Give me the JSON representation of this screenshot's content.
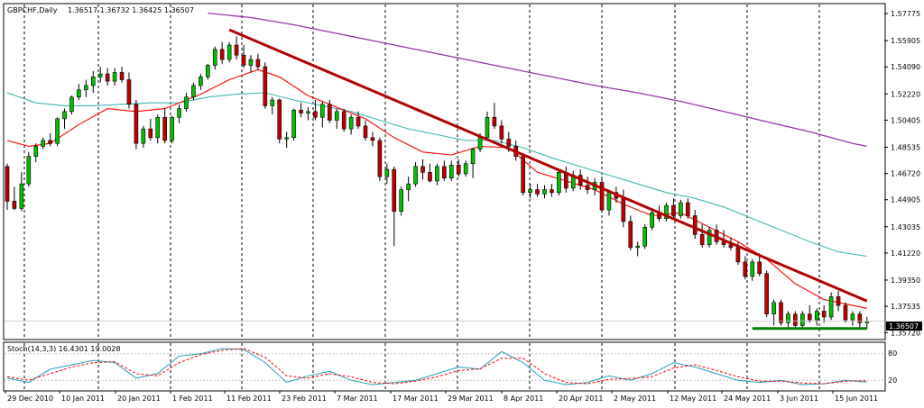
{
  "header": {
    "symbol": "GBPCHF,Daily",
    "ohlc": "1.36517 1.36732 1.36425 1.36507"
  },
  "stoch": {
    "label": "Stoch(14,3,3) 16.4301 19.0028",
    "levels": [
      "80",
      "20"
    ]
  },
  "colors": {
    "bull": "#00c000",
    "bear": "#c00000",
    "ema_fast": "#ff0000",
    "ema_slow": "#3cb8b0",
    "ma_long": "#9933aa",
    "trend": "#b00000",
    "support": "#008000",
    "grid": "#000000",
    "stoch_main": "#20a0c0",
    "stoch_signal": "#ff0000"
  },
  "chart_data": {
    "type": "candlestick",
    "symbol": "GBPCHF",
    "timeframe": "Daily",
    "y_ticks": [
      "1.57775",
      "1.55905",
      "1.54090",
      "1.52220",
      "1.50405",
      "1.48535",
      "1.46720",
      "1.44905",
      "1.43035",
      "1.41220",
      "1.39350",
      "1.37535",
      "1.35720"
    ],
    "y_range": [
      1.3572,
      1.57775
    ],
    "current_price": "1.36507",
    "x_ticks": [
      "29 Dec 2010",
      "10 Jan 2011",
      "20 Jan 2011",
      "1 Feb 2011",
      "11 Feb 2011",
      "23 Feb 2011",
      "7 Mar 2011",
      "17 Mar 2011",
      "29 Mar 2011",
      "8 Apr 2011",
      "20 Apr 2011",
      "2 May 2011",
      "12 May 2011",
      "24 May 2011",
      "3 Jun 2011",
      "15 Jun 2011"
    ],
    "candles": [
      [
        1.472,
        1.474,
        1.442,
        1.448
      ],
      [
        1.448,
        1.458,
        1.442,
        1.443
      ],
      [
        1.443,
        1.468,
        1.441,
        1.46
      ],
      [
        1.46,
        1.482,
        1.458,
        1.479
      ],
      [
        1.479,
        1.488,
        1.475,
        1.486
      ],
      [
        1.486,
        1.492,
        1.484,
        1.49
      ],
      [
        1.49,
        1.495,
        1.486,
        1.488
      ],
      [
        1.488,
        1.506,
        1.486,
        1.505
      ],
      [
        1.505,
        1.512,
        1.498,
        1.51
      ],
      [
        1.51,
        1.521,
        1.508,
        1.52
      ],
      [
        1.52,
        1.529,
        1.518,
        1.525
      ],
      [
        1.525,
        1.532,
        1.52,
        1.528
      ],
      [
        1.528,
        1.538,
        1.523,
        1.534
      ],
      [
        1.534,
        1.541,
        1.53,
        1.536
      ],
      [
        1.536,
        1.54,
        1.528,
        1.531
      ],
      [
        1.531,
        1.54,
        1.528,
        1.537
      ],
      [
        1.537,
        1.541,
        1.53,
        1.532
      ],
      [
        1.532,
        1.537,
        1.512,
        1.515
      ],
      [
        1.515,
        1.518,
        1.484,
        1.488
      ],
      [
        1.488,
        1.5,
        1.485,
        1.498
      ],
      [
        1.498,
        1.505,
        1.49,
        1.492
      ],
      [
        1.492,
        1.508,
        1.488,
        1.506
      ],
      [
        1.506,
        1.512,
        1.488,
        1.49
      ],
      [
        1.49,
        1.507,
        1.488,
        1.506
      ],
      [
        1.506,
        1.515,
        1.502,
        1.512
      ],
      [
        1.512,
        1.523,
        1.51,
        1.52
      ],
      [
        1.52,
        1.53,
        1.518,
        1.528
      ],
      [
        1.528,
        1.536,
        1.525,
        1.534
      ],
      [
        1.534,
        1.543,
        1.532,
        1.542
      ],
      [
        1.542,
        1.555,
        1.539,
        1.553
      ],
      [
        1.553,
        1.558,
        1.543,
        1.546
      ],
      [
        1.546,
        1.558,
        1.544,
        1.556
      ],
      [
        1.556,
        1.562,
        1.546,
        1.549
      ],
      [
        1.549,
        1.556,
        1.54,
        1.542
      ],
      [
        1.542,
        1.549,
        1.537,
        1.546
      ],
      [
        1.546,
        1.55,
        1.539,
        1.541
      ],
      [
        1.541,
        1.544,
        1.512,
        1.514
      ],
      [
        1.514,
        1.52,
        1.508,
        1.518
      ],
      [
        1.518,
        1.519,
        1.488,
        1.491
      ],
      [
        1.491,
        1.496,
        1.485,
        1.492
      ],
      [
        1.492,
        1.512,
        1.49,
        1.511
      ],
      [
        1.511,
        1.516,
        1.506,
        1.509
      ],
      [
        1.509,
        1.513,
        1.504,
        1.51
      ],
      [
        1.51,
        1.518,
        1.504,
        1.506
      ],
      [
        1.506,
        1.517,
        1.499,
        1.515
      ],
      [
        1.515,
        1.518,
        1.502,
        1.504
      ],
      [
        1.504,
        1.512,
        1.498,
        1.51
      ],
      [
        1.51,
        1.512,
        1.496,
        1.498
      ],
      [
        1.498,
        1.508,
        1.494,
        1.506
      ],
      [
        1.506,
        1.51,
        1.498,
        1.5
      ],
      [
        1.5,
        1.504,
        1.49,
        1.492
      ],
      [
        1.492,
        1.496,
        1.486,
        1.49
      ],
      [
        1.49,
        1.492,
        1.462,
        1.465
      ],
      [
        1.465,
        1.474,
        1.46,
        1.47
      ],
      [
        1.47,
        1.472,
        1.417,
        1.441
      ],
      [
        1.441,
        1.458,
        1.438,
        1.456
      ],
      [
        1.456,
        1.465,
        1.448,
        1.46
      ],
      [
        1.46,
        1.475,
        1.458,
        1.472
      ],
      [
        1.472,
        1.477,
        1.463,
        1.468
      ],
      [
        1.468,
        1.474,
        1.461,
        1.462
      ],
      [
        1.462,
        1.474,
        1.459,
        1.472
      ],
      [
        1.472,
        1.476,
        1.462,
        1.464
      ],
      [
        1.464,
        1.476,
        1.462,
        1.473
      ],
      [
        1.473,
        1.477,
        1.465,
        1.467
      ],
      [
        1.467,
        1.476,
        1.465,
        1.474
      ],
      [
        1.474,
        1.485,
        1.464,
        1.484
      ],
      [
        1.484,
        1.495,
        1.482,
        1.492
      ],
      [
        1.492,
        1.51,
        1.49,
        1.506
      ],
      [
        1.506,
        1.516,
        1.498,
        1.5
      ],
      [
        1.5,
        1.504,
        1.488,
        1.491
      ],
      [
        1.491,
        1.496,
        1.482,
        1.486
      ],
      [
        1.486,
        1.49,
        1.476,
        1.479
      ],
      [
        1.479,
        1.48,
        1.452,
        1.454
      ],
      [
        1.454,
        1.46,
        1.45,
        1.456
      ],
      [
        1.456,
        1.46,
        1.451,
        1.453
      ],
      [
        1.453,
        1.459,
        1.45,
        1.456
      ],
      [
        1.456,
        1.46,
        1.451,
        1.454
      ],
      [
        1.454,
        1.47,
        1.452,
        1.468
      ],
      [
        1.468,
        1.472,
        1.454,
        1.457
      ],
      [
        1.457,
        1.469,
        1.455,
        1.466
      ],
      [
        1.466,
        1.47,
        1.456,
        1.459
      ],
      [
        1.459,
        1.465,
        1.453,
        1.456
      ],
      [
        1.456,
        1.464,
        1.452,
        1.461
      ],
      [
        1.461,
        1.465,
        1.44,
        1.442
      ],
      [
        1.442,
        1.456,
        1.438,
        1.454
      ],
      [
        1.454,
        1.458,
        1.447,
        1.45
      ],
      [
        1.45,
        1.456,
        1.43,
        1.434
      ],
      [
        1.434,
        1.438,
        1.414,
        1.416
      ],
      [
        1.416,
        1.42,
        1.41,
        1.417
      ],
      [
        1.417,
        1.432,
        1.415,
        1.43
      ],
      [
        1.43,
        1.442,
        1.428,
        1.44
      ],
      [
        1.44,
        1.445,
        1.434,
        1.436
      ],
      [
        1.436,
        1.447,
        1.434,
        1.445
      ],
      [
        1.445,
        1.45,
        1.436,
        1.438
      ],
      [
        1.438,
        1.449,
        1.436,
        1.447
      ],
      [
        1.447,
        1.45,
        1.436,
        1.438
      ],
      [
        1.438,
        1.442,
        1.422,
        1.425
      ],
      [
        1.425,
        1.432,
        1.416,
        1.418
      ],
      [
        1.418,
        1.43,
        1.416,
        1.428
      ],
      [
        1.428,
        1.432,
        1.418,
        1.42
      ],
      [
        1.42,
        1.428,
        1.416,
        1.418
      ],
      [
        1.418,
        1.423,
        1.414,
        1.416
      ],
      [
        1.416,
        1.42,
        1.404,
        1.406
      ],
      [
        1.406,
        1.41,
        1.394,
        1.396
      ],
      [
        1.396,
        1.408,
        1.393,
        1.406
      ],
      [
        1.406,
        1.412,
        1.396,
        1.398
      ],
      [
        1.398,
        1.4,
        1.368,
        1.37
      ],
      [
        1.37,
        1.38,
        1.362,
        1.378
      ],
      [
        1.378,
        1.38,
        1.362,
        1.364
      ],
      [
        1.364,
        1.372,
        1.36,
        1.37
      ],
      [
        1.37,
        1.372,
        1.36,
        1.362
      ],
      [
        1.362,
        1.372,
        1.36,
        1.37
      ],
      [
        1.37,
        1.376,
        1.364,
        1.366
      ],
      [
        1.366,
        1.374,
        1.362,
        1.372
      ],
      [
        1.372,
        1.376,
        1.364,
        1.368
      ],
      [
        1.368,
        1.385,
        1.366,
        1.382
      ],
      [
        1.382,
        1.386,
        1.372,
        1.376
      ],
      [
        1.376,
        1.378,
        1.364,
        1.366
      ],
      [
        1.366,
        1.372,
        1.362,
        1.37
      ],
      [
        1.37,
        1.372,
        1.36,
        1.364
      ],
      [
        1.364,
        1.368,
        1.36,
        1.365
      ]
    ],
    "trend_line": {
      "start": [
        31,
        1.5665
      ],
      "end": [
        120,
        1.379
      ]
    },
    "support_line": {
      "start": [
        104,
        1.36
      ],
      "end": [
        120,
        1.36
      ]
    },
    "ema_fast": [
      [
        0,
        1.49
      ],
      [
        3,
        1.486
      ],
      [
        6,
        1.488
      ],
      [
        10,
        1.501
      ],
      [
        14,
        1.512
      ],
      [
        18,
        1.51
      ],
      [
        22,
        1.512
      ],
      [
        27,
        1.522
      ],
      [
        31,
        1.532
      ],
      [
        35,
        1.539
      ],
      [
        38,
        1.534
      ],
      [
        42,
        1.521
      ],
      [
        46,
        1.513
      ],
      [
        50,
        1.505
      ],
      [
        54,
        1.492
      ],
      [
        58,
        1.482
      ],
      [
        62,
        1.48
      ],
      [
        66,
        1.486
      ],
      [
        70,
        1.485
      ],
      [
        74,
        1.468
      ],
      [
        78,
        1.462
      ],
      [
        82,
        1.456
      ],
      [
        86,
        1.446
      ],
      [
        90,
        1.438
      ],
      [
        94,
        1.44
      ],
      [
        98,
        1.43
      ],
      [
        102,
        1.42
      ],
      [
        106,
        1.408
      ],
      [
        110,
        1.391
      ],
      [
        114,
        1.38
      ],
      [
        120,
        1.374
      ]
    ],
    "ema_slow": [
      [
        0,
        1.523
      ],
      [
        4,
        1.516
      ],
      [
        8,
        1.514
      ],
      [
        12,
        1.514
      ],
      [
        16,
        1.515
      ],
      [
        20,
        1.516
      ],
      [
        24,
        1.516
      ],
      [
        28,
        1.52
      ],
      [
        32,
        1.522
      ],
      [
        36,
        1.523
      ],
      [
        40,
        1.518
      ],
      [
        44,
        1.514
      ],
      [
        48,
        1.51
      ],
      [
        52,
        1.504
      ],
      [
        56,
        1.498
      ],
      [
        60,
        1.494
      ],
      [
        64,
        1.49
      ],
      [
        68,
        1.49
      ],
      [
        72,
        1.485
      ],
      [
        76,
        1.478
      ],
      [
        80,
        1.472
      ],
      [
        84,
        1.466
      ],
      [
        88,
        1.46
      ],
      [
        92,
        1.454
      ],
      [
        96,
        1.45
      ],
      [
        100,
        1.444
      ],
      [
        104,
        1.436
      ],
      [
        108,
        1.428
      ],
      [
        112,
        1.42
      ],
      [
        116,
        1.413
      ],
      [
        120,
        1.41
      ]
    ],
    "ma_long": [
      [
        28,
        1.578
      ],
      [
        34,
        1.575
      ],
      [
        40,
        1.57
      ],
      [
        46,
        1.564
      ],
      [
        52,
        1.558
      ],
      [
        58,
        1.552
      ],
      [
        64,
        1.546
      ],
      [
        70,
        1.54
      ],
      [
        76,
        1.534
      ],
      [
        82,
        1.528
      ],
      [
        88,
        1.523
      ],
      [
        94,
        1.517
      ],
      [
        100,
        1.51
      ],
      [
        106,
        1.503
      ],
      [
        112,
        1.496
      ],
      [
        118,
        1.488
      ],
      [
        120,
        1.486
      ]
    ],
    "stoch_main": [
      [
        0,
        25
      ],
      [
        3,
        15
      ],
      [
        6,
        45
      ],
      [
        9,
        55
      ],
      [
        12,
        65
      ],
      [
        15,
        60
      ],
      [
        18,
        25
      ],
      [
        21,
        35
      ],
      [
        24,
        75
      ],
      [
        27,
        80
      ],
      [
        30,
        92
      ],
      [
        33,
        90
      ],
      [
        36,
        60
      ],
      [
        39,
        15
      ],
      [
        42,
        30
      ],
      [
        45,
        40
      ],
      [
        48,
        20
      ],
      [
        51,
        10
      ],
      [
        54,
        15
      ],
      [
        57,
        20
      ],
      [
        60,
        35
      ],
      [
        63,
        50
      ],
      [
        66,
        45
      ],
      [
        69,
        85
      ],
      [
        72,
        60
      ],
      [
        75,
        20
      ],
      [
        78,
        10
      ],
      [
        81,
        15
      ],
      [
        84,
        30
      ],
      [
        87,
        20
      ],
      [
        90,
        35
      ],
      [
        93,
        60
      ],
      [
        96,
        50
      ],
      [
        99,
        35
      ],
      [
        102,
        20
      ],
      [
        105,
        15
      ],
      [
        108,
        20
      ],
      [
        111,
        10
      ],
      [
        114,
        12
      ],
      [
        117,
        20
      ],
      [
        120,
        16
      ]
    ],
    "stoch_signal": [
      [
        0,
        28
      ],
      [
        3,
        20
      ],
      [
        6,
        35
      ],
      [
        9,
        50
      ],
      [
        12,
        60
      ],
      [
        15,
        62
      ],
      [
        18,
        35
      ],
      [
        21,
        30
      ],
      [
        24,
        60
      ],
      [
        27,
        78
      ],
      [
        30,
        88
      ],
      [
        33,
        92
      ],
      [
        36,
        72
      ],
      [
        39,
        30
      ],
      [
        42,
        25
      ],
      [
        45,
        35
      ],
      [
        48,
        28
      ],
      [
        51,
        15
      ],
      [
        54,
        12
      ],
      [
        57,
        18
      ],
      [
        60,
        28
      ],
      [
        63,
        42
      ],
      [
        66,
        46
      ],
      [
        69,
        70
      ],
      [
        72,
        70
      ],
      [
        75,
        35
      ],
      [
        78,
        15
      ],
      [
        81,
        12
      ],
      [
        84,
        22
      ],
      [
        87,
        24
      ],
      [
        90,
        28
      ],
      [
        93,
        48
      ],
      [
        96,
        55
      ],
      [
        99,
        42
      ],
      [
        102,
        28
      ],
      [
        105,
        18
      ],
      [
        108,
        18
      ],
      [
        111,
        14
      ],
      [
        114,
        12
      ],
      [
        117,
        18
      ],
      [
        120,
        19
      ]
    ]
  }
}
